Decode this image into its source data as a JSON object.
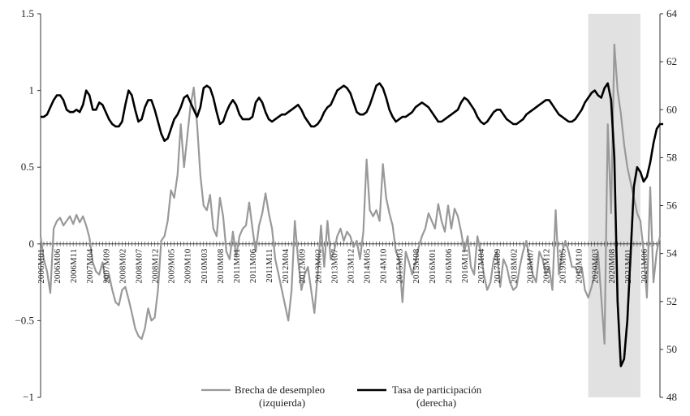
{
  "chart_data": {
    "type": "line",
    "x_labels": [
      "2006M01",
      "2006M06",
      "2006M11",
      "2007M04",
      "2007M09",
      "2008M02",
      "2008M07",
      "2008M12",
      "2009M05",
      "2009M10",
      "2010M03",
      "2010M08",
      "2011M01",
      "2011M06",
      "2011M11",
      "2012M04",
      "2012M09",
      "2013M02",
      "2013M07",
      "2013M12",
      "2014M05",
      "2014M10",
      "2015M03",
      "2015M08",
      "2016M01",
      "2016M06",
      "2016M11",
      "2017M04",
      "2017M09",
      "2018M02",
      "2018M07",
      "2018M12",
      "2019M05",
      "2019M10",
      "2020M03",
      "2020M08",
      "2021M01",
      "2021M06"
    ],
    "y_left": {
      "lim": [
        -1,
        1.5
      ],
      "ticks": [
        "−1",
        "−0.5",
        "0",
        "0.5",
        "1",
        "1.5"
      ],
      "tick_values": [
        -1,
        -0.5,
        0,
        0.5,
        1,
        1.5
      ]
    },
    "y_right": {
      "lim": [
        48,
        64
      ],
      "ticks": [
        "48",
        "50",
        "52",
        "54",
        "56",
        "58",
        "60",
        "62",
        "64"
      ],
      "tick_values": [
        48,
        50,
        52,
        54,
        56,
        58,
        60,
        62,
        64
      ]
    },
    "shaded_region": {
      "from_month_index": 168,
      "to_month_index": 184
    },
    "series": [
      {
        "name": "Brecha de desempleo\n(izquierda)",
        "legend_lines": [
          "Brecha de desempleo",
          "(izquierda)"
        ],
        "axis": "left",
        "color": "#999999",
        "values": [
          0.05,
          -0.1,
          -0.18,
          -0.32,
          0.1,
          0.15,
          0.17,
          0.12,
          0.15,
          0.18,
          0.13,
          0.19,
          0.14,
          0.18,
          0.12,
          0.04,
          -0.12,
          -0.18,
          -0.2,
          -0.12,
          -0.25,
          -0.2,
          -0.3,
          -0.38,
          -0.4,
          -0.3,
          -0.28,
          -0.36,
          -0.45,
          -0.55,
          -0.6,
          -0.62,
          -0.55,
          -0.42,
          -0.5,
          -0.48,
          -0.3,
          0.02,
          0.05,
          0.15,
          0.35,
          0.3,
          0.45,
          0.78,
          0.5,
          0.7,
          0.9,
          1.02,
          0.78,
          0.45,
          0.25,
          0.22,
          0.32,
          0.1,
          0.05,
          0.3,
          0.18,
          -0.05,
          -0.1,
          0.08,
          -0.08,
          0.05,
          0.1,
          0.12,
          0.27,
          0.1,
          -0.05,
          0.12,
          0.2,
          0.33,
          0.2,
          0.1,
          -0.1,
          -0.2,
          -0.3,
          -0.4,
          -0.5,
          -0.3,
          0.15,
          -0.1,
          -0.3,
          -0.2,
          -0.15,
          -0.3,
          -0.45,
          -0.2,
          0.12,
          -0.15,
          0.15,
          -0.1,
          -0.05,
          0.05,
          0.1,
          0.02,
          0.08,
          0.05,
          -0.02,
          0.02,
          -0.1,
          0.08,
          0.55,
          0.22,
          0.18,
          0.22,
          0.15,
          0.52,
          0.3,
          0.2,
          0.12,
          -0.05,
          -0.1,
          -0.38,
          -0.05,
          -0.12,
          -0.2,
          -0.12,
          -0.02,
          0.05,
          0.1,
          0.2,
          0.15,
          0.1,
          0.26,
          0.15,
          0.08,
          0.25,
          0.1,
          0.23,
          0.18,
          0.08,
          -0.05,
          0.05,
          -0.15,
          -0.2,
          0.05,
          -0.05,
          -0.2,
          -0.3,
          -0.25,
          -0.1,
          -0.05,
          -0.28,
          -0.1,
          -0.15,
          -0.25,
          -0.3,
          -0.28,
          -0.15,
          -0.05,
          0.02,
          -0.1,
          -0.2,
          -0.25,
          -0.05,
          -0.1,
          -0.2,
          -0.15,
          -0.3,
          0.22,
          -0.2,
          -0.05,
          0.02,
          -0.05,
          -0.15,
          -0.15,
          -0.2,
          -0.15,
          -0.3,
          -0.35,
          -0.28,
          -0.2,
          -0.05,
          -0.35,
          -0.65,
          0.78,
          0.2,
          1.3,
          1.0,
          0.85,
          0.65,
          0.5,
          0.4,
          0.3,
          0.2,
          0.15,
          -0.05,
          -0.35,
          0.37,
          -0.25,
          -0.05,
          0.05
        ]
      },
      {
        "name": "Tasa de participación\n(derecha)",
        "legend_lines": [
          "Tasa de participación",
          "(derecha)"
        ],
        "axis": "right",
        "color": "#000000",
        "values": [
          59.7,
          59.7,
          59.8,
          60.1,
          60.4,
          60.6,
          60.6,
          60.4,
          60.0,
          59.9,
          59.9,
          60.0,
          59.9,
          60.2,
          60.8,
          60.6,
          60.0,
          60.0,
          60.3,
          60.2,
          59.9,
          59.6,
          59.4,
          59.3,
          59.3,
          59.5,
          60.2,
          60.8,
          60.6,
          60.0,
          59.5,
          59.6,
          60.1,
          60.4,
          60.4,
          60.0,
          59.5,
          59.0,
          58.7,
          58.8,
          59.2,
          59.6,
          59.8,
          60.1,
          60.5,
          60.6,
          60.3,
          60.0,
          59.7,
          60.1,
          60.9,
          61.0,
          60.9,
          60.5,
          59.9,
          59.4,
          59.5,
          59.9,
          60.2,
          60.4,
          60.2,
          59.8,
          59.6,
          59.6,
          59.6,
          59.7,
          60.3,
          60.5,
          60.3,
          59.9,
          59.6,
          59.5,
          59.6,
          59.7,
          59.8,
          59.8,
          59.9,
          60.0,
          60.1,
          60.2,
          60.0,
          59.7,
          59.5,
          59.3,
          59.3,
          59.4,
          59.6,
          59.9,
          60.1,
          60.2,
          60.5,
          60.8,
          60.9,
          61.0,
          60.9,
          60.7,
          60.3,
          59.9,
          59.8,
          59.8,
          59.9,
          60.2,
          60.6,
          61.0,
          61.1,
          60.9,
          60.5,
          60.0,
          59.7,
          59.5,
          59.6,
          59.7,
          59.7,
          59.8,
          59.9,
          60.1,
          60.2,
          60.3,
          60.2,
          60.1,
          59.9,
          59.7,
          59.5,
          59.5,
          59.6,
          59.7,
          59.8,
          59.9,
          60.0,
          60.3,
          60.5,
          60.4,
          60.2,
          60.0,
          59.7,
          59.5,
          59.4,
          59.5,
          59.7,
          59.9,
          60.0,
          60.0,
          59.8,
          59.6,
          59.5,
          59.4,
          59.4,
          59.5,
          59.6,
          59.8,
          59.9,
          60.0,
          60.1,
          60.2,
          60.3,
          60.4,
          60.4,
          60.2,
          60.0,
          59.8,
          59.7,
          59.6,
          59.5,
          59.5,
          59.6,
          59.8,
          60.0,
          60.3,
          60.5,
          60.7,
          60.8,
          60.6,
          60.5,
          60.9,
          61.1,
          60.4,
          58.0,
          52.0,
          49.3,
          49.6,
          51.2,
          54.0,
          56.8,
          57.6,
          57.4,
          57.0,
          57.2,
          57.8,
          58.6,
          59.2,
          59.4,
          59.4
        ]
      }
    ]
  }
}
